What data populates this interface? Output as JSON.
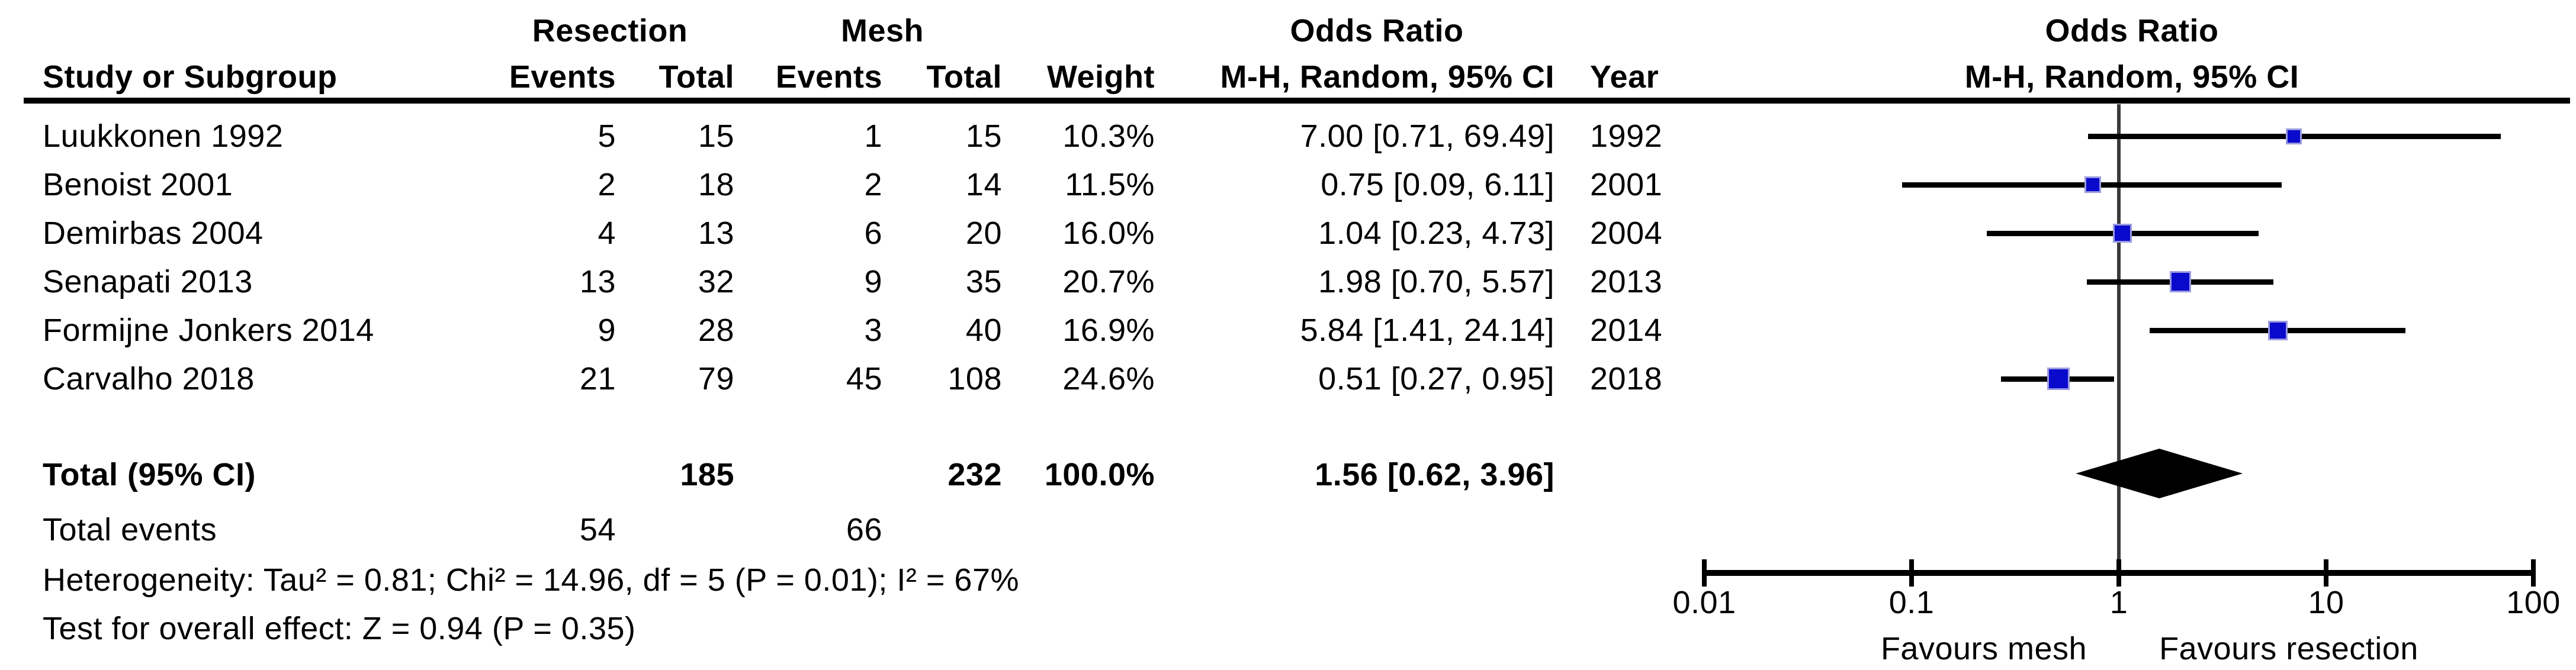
{
  "table": {
    "group_headers": {
      "resection": "Resection",
      "mesh": "Mesh",
      "odds_ratio_text": "Odds Ratio",
      "odds_ratio_plot": "Odds Ratio"
    },
    "col_headers": {
      "study": "Study or Subgroup",
      "resection_events": "Events",
      "resection_total": "Total",
      "mesh_events": "Events",
      "mesh_total": "Total",
      "weight": "Weight",
      "or_ci": "M-H, Random, 95% CI",
      "year": "Year",
      "or_ci_plot": "M-H, Random, 95% CI"
    },
    "rows": [
      {
        "study": "Luukkonen 1992",
        "r_events": "5",
        "r_total": "15",
        "m_events": "1",
        "m_total": "15",
        "weight": "10.3%",
        "or_ci": "7.00 [0.71, 69.49]",
        "year": "1992"
      },
      {
        "study": "Benoist 2001",
        "r_events": "2",
        "r_total": "18",
        "m_events": "2",
        "m_total": "14",
        "weight": "11.5%",
        "or_ci": "0.75 [0.09, 6.11]",
        "year": "2001"
      },
      {
        "study": "Demirbas 2004",
        "r_events": "4",
        "r_total": "13",
        "m_events": "6",
        "m_total": "20",
        "weight": "16.0%",
        "or_ci": "1.04 [0.23, 4.73]",
        "year": "2004"
      },
      {
        "study": "Senapati 2013",
        "r_events": "13",
        "r_total": "32",
        "m_events": "9",
        "m_total": "35",
        "weight": "20.7%",
        "or_ci": "1.98 [0.70, 5.57]",
        "year": "2013"
      },
      {
        "study": "Formijne Jonkers 2014",
        "r_events": "9",
        "r_total": "28",
        "m_events": "3",
        "m_total": "40",
        "weight": "16.9%",
        "or_ci": "5.84 [1.41, 24.14]",
        "year": "2014"
      },
      {
        "study": "Carvalho 2018",
        "r_events": "21",
        "r_total": "79",
        "m_events": "45",
        "m_total": "108",
        "weight": "24.6%",
        "or_ci": "0.51 [0.27, 0.95]",
        "year": "2018"
      }
    ],
    "totals": {
      "label": "Total (95% CI)",
      "r_total": "185",
      "m_total": "232",
      "weight": "100.0%",
      "or_ci": "1.56 [0.62, 3.96]"
    },
    "total_events": {
      "label": "Total events",
      "r_events": "54",
      "m_events": "66"
    },
    "stats": {
      "heterogeneity": "Heterogeneity: Tau² = 0.81; Chi² = 14.96, df = 5 (P = 0.01); I² = 67%",
      "overall_effect": "Test for overall effect: Z = 0.94 (P = 0.35)"
    }
  },
  "chart_data": {
    "type": "forest",
    "title": "Odds Ratio",
    "method": "M-H, Random, 95% CI",
    "x_scale": "log10",
    "x_range": [
      0.01,
      100
    ],
    "x_ticks": [
      0.01,
      0.1,
      1,
      10,
      100
    ],
    "x_tick_labels": [
      "0.01",
      "0.1",
      "1",
      "10",
      "100"
    ],
    "studies": [
      {
        "name": "Luukkonen 1992",
        "or": 7.0,
        "lo": 0.71,
        "hi": 69.49,
        "weight": 10.3
      },
      {
        "name": "Benoist 2001",
        "or": 0.75,
        "lo": 0.09,
        "hi": 6.11,
        "weight": 11.5
      },
      {
        "name": "Demirbas 2004",
        "or": 1.04,
        "lo": 0.23,
        "hi": 4.73,
        "weight": 16.0
      },
      {
        "name": "Senapati 2013",
        "or": 1.98,
        "lo": 0.7,
        "hi": 5.57,
        "weight": 20.7
      },
      {
        "name": "Formijne Jonkers 2014",
        "or": 5.84,
        "lo": 1.41,
        "hi": 24.14,
        "weight": 16.9
      },
      {
        "name": "Carvalho 2018",
        "or": 0.51,
        "lo": 0.27,
        "hi": 0.95,
        "weight": 24.6
      }
    ],
    "total": {
      "or": 1.56,
      "lo": 0.62,
      "hi": 3.96
    },
    "favours_left": "Favours mesh",
    "favours_right": "Favours resection",
    "square_color": "#0a0acc",
    "ci_color": "#000000",
    "diamond_color": "#000000",
    "axis_color": "#000000"
  }
}
